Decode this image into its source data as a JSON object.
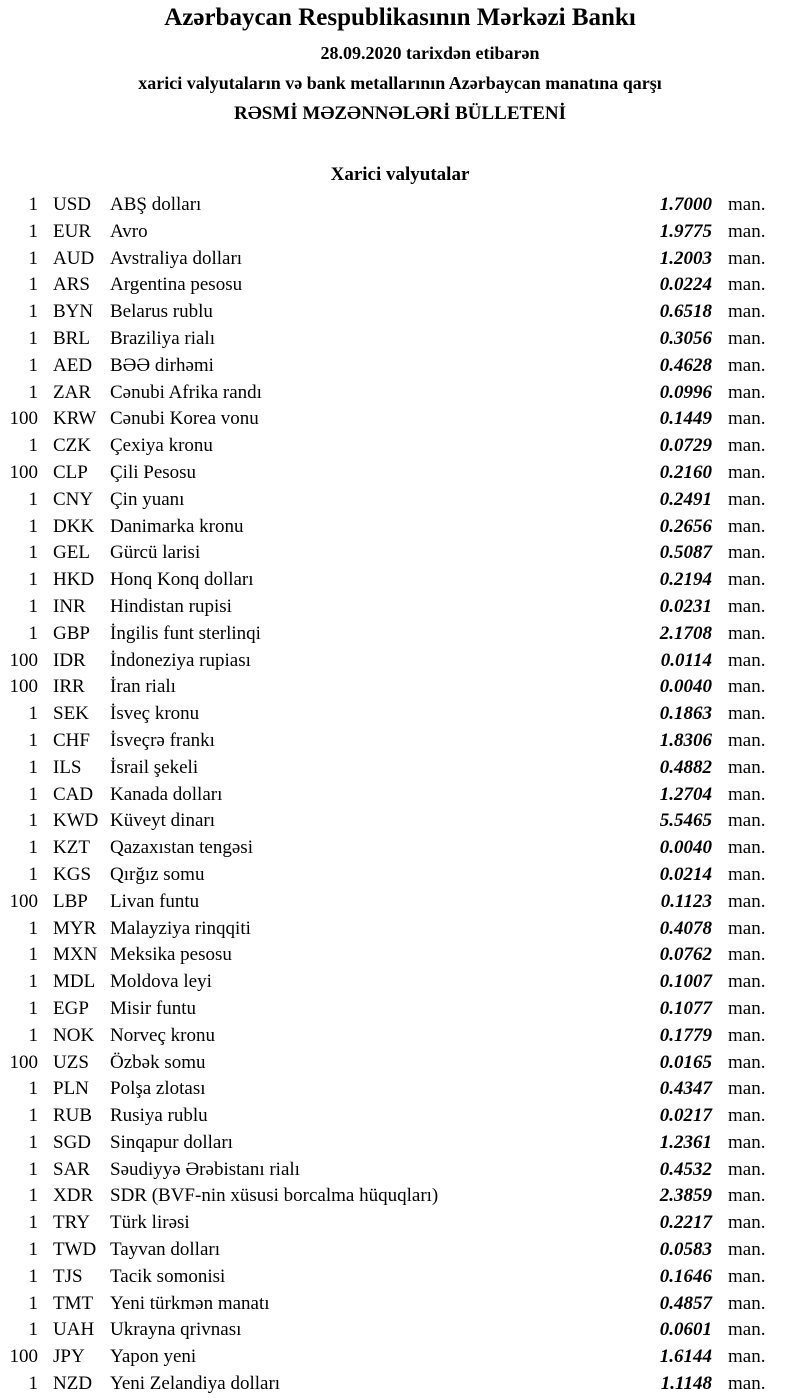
{
  "header": {
    "title": "Azərbaycan Respublikasının Mərkəzi Bankı",
    "date_line": "28.09.2020  tarixdən etibarən",
    "subtitle": "xarici valyutaların və bank metallarının Azərbaycan manatına qarşı",
    "bulletin": "RƏSMİ MƏZƏNNƏLƏRİ BÜLLETENİ"
  },
  "section_title": "Xarici valyutalar",
  "unit_label": "man.",
  "rates": [
    {
      "amount": "1",
      "code": "USD",
      "name": "ABŞ dolları",
      "value": "1.7000"
    },
    {
      "amount": "1",
      "code": "EUR",
      "name": "Avro",
      "value": "1.9775"
    },
    {
      "amount": "1",
      "code": "AUD",
      "name": "Avstraliya dolları",
      "value": "1.2003"
    },
    {
      "amount": "1",
      "code": "ARS",
      "name": "Argentina pesosu",
      "value": "0.0224"
    },
    {
      "amount": "1",
      "code": "BYN",
      "name": "Belarus rublu",
      "value": "0.6518"
    },
    {
      "amount": "1",
      "code": "BRL",
      "name": "Braziliya rialı",
      "value": "0.3056"
    },
    {
      "amount": "1",
      "code": "AED",
      "name": "BƏƏ dirhəmi",
      "value": "0.4628"
    },
    {
      "amount": "1",
      "code": "ZAR",
      "name": "Cənubi Afrika randı",
      "value": "0.0996"
    },
    {
      "amount": "100",
      "code": "KRW",
      "name": "Cənubi Korea vonu",
      "value": "0.1449"
    },
    {
      "amount": "1",
      "code": "CZK",
      "name": "Çexiya kronu",
      "value": "0.0729"
    },
    {
      "amount": "100",
      "code": "CLP",
      "name": "Çili Pesosu",
      "value": "0.2160"
    },
    {
      "amount": "1",
      "code": "CNY",
      "name": "Çin yuanı",
      "value": "0.2491"
    },
    {
      "amount": "1",
      "code": "DKK",
      "name": "Danimarka kronu",
      "value": "0.2656"
    },
    {
      "amount": "1",
      "code": "GEL",
      "name": "Gürcü larisi",
      "value": "0.5087"
    },
    {
      "amount": "1",
      "code": "HKD",
      "name": "Honq Konq dolları",
      "value": "0.2194"
    },
    {
      "amount": "1",
      "code": "INR",
      "name": "Hindistan rupisi",
      "value": "0.0231"
    },
    {
      "amount": "1",
      "code": "GBP",
      "name": "İngilis funt sterlinqi",
      "value": "2.1708"
    },
    {
      "amount": "100",
      "code": "IDR",
      "name": "İndoneziya rupiası",
      "value": "0.0114"
    },
    {
      "amount": "100",
      "code": "IRR",
      "name": "İran rialı",
      "value": "0.0040"
    },
    {
      "amount": "1",
      "code": "SEK",
      "name": "İsveç kronu",
      "value": "0.1863"
    },
    {
      "amount": "1",
      "code": "CHF",
      "name": "İsveçrə frankı",
      "value": "1.8306"
    },
    {
      "amount": "1",
      "code": "ILS",
      "name": "İsrail şekeli",
      "value": "0.4882"
    },
    {
      "amount": "1",
      "code": "CAD",
      "name": "Kanada dolları",
      "value": "1.2704"
    },
    {
      "amount": "1",
      "code": "KWD",
      "name": "Küveyt dinarı",
      "value": "5.5465"
    },
    {
      "amount": "1",
      "code": "KZT",
      "name": "Qazaxıstan tengəsi",
      "value": "0.0040"
    },
    {
      "amount": "1",
      "code": "KGS",
      "name": "Qırğız somu",
      "value": "0.0214"
    },
    {
      "amount": "100",
      "code": "LBP",
      "name": "Livan funtu",
      "value": "0.1123"
    },
    {
      "amount": "1",
      "code": "MYR",
      "name": "Malayziya rinqqiti",
      "value": "0.4078"
    },
    {
      "amount": "1",
      "code": "MXN",
      "name": "Meksika pesosu",
      "value": "0.0762"
    },
    {
      "amount": "1",
      "code": "MDL",
      "name": "Moldova leyi",
      "value": "0.1007"
    },
    {
      "amount": "1",
      "code": "EGP",
      "name": "Misir funtu",
      "value": "0.1077"
    },
    {
      "amount": "1",
      "code": "NOK",
      "name": "Norveç kronu",
      "value": "0.1779"
    },
    {
      "amount": "100",
      "code": "UZS",
      "name": "Özbək somu",
      "value": "0.0165"
    },
    {
      "amount": "1",
      "code": "PLN",
      "name": "Polşa zlotası",
      "value": "0.4347"
    },
    {
      "amount": "1",
      "code": "RUB",
      "name": "Rusiya rublu",
      "value": "0.0217"
    },
    {
      "amount": "1",
      "code": "SGD",
      "name": "Sinqapur dolları",
      "value": "1.2361"
    },
    {
      "amount": "1",
      "code": "SAR",
      "name": "Səudiyyə Ərəbistanı rialı",
      "value": "0.4532"
    },
    {
      "amount": "1",
      "code": "XDR",
      "name": "SDR (BVF-nin xüsusi borcalma hüquqları)",
      "value": "2.3859"
    },
    {
      "amount": "1",
      "code": "TRY",
      "name": "Türk lirəsi",
      "value": "0.2217"
    },
    {
      "amount": "1",
      "code": "TWD",
      "name": "Tayvan dolları",
      "value": "0.0583"
    },
    {
      "amount": "1",
      "code": "TJS",
      "name": "Tacik somonisi",
      "value": "0.1646"
    },
    {
      "amount": "1",
      "code": "TMT",
      "name": "Yeni türkmən manatı",
      "value": "0.4857"
    },
    {
      "amount": "1",
      "code": "UAH",
      "name": "Ukrayna qrivnası",
      "value": "0.0601"
    },
    {
      "amount": "100",
      "code": "JPY",
      "name": "Yapon yeni",
      "value": "1.6144"
    },
    {
      "amount": "1",
      "code": "NZD",
      "name": "Yeni Zelandiya dolları",
      "value": "1.1148"
    }
  ]
}
